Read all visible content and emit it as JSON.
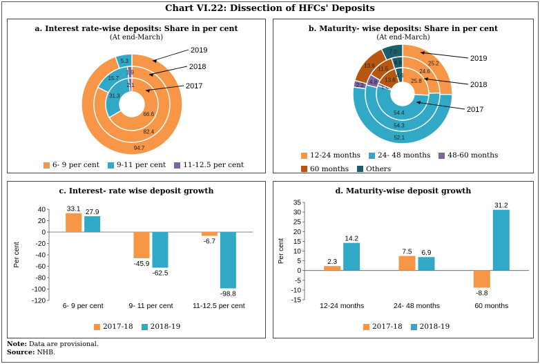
{
  "title": "Chart VI.22: Dissection of HFCs' Deposits",
  "note_label": "Note:",
  "note_text": "Data are provisional.",
  "source_label": "Source:",
  "source_text": "NHB.",
  "colors": {
    "orange": "#F79646",
    "blue": "#31A9C6",
    "purple": "#8064A2",
    "brown": "#B7560F",
    "teal": "#1B5E6E"
  },
  "chart_data": [
    {
      "id": "a",
      "type": "pie",
      "subtype": "multi-ring-donut",
      "title": "a. Interest rate-wise deposits: Share in per cent",
      "subtitle": "(At end-March)",
      "categories": [
        "6- 9 per cent",
        "9-11 per cent",
        "11-12.5 per cent"
      ],
      "rings": [
        {
          "name": "2019",
          "values": [
            94.7,
            5.3,
            0.0
          ],
          "labels": [
            "94.7",
            "5.3",
            ""
          ]
        },
        {
          "name": "2018",
          "values": [
            82.4,
            15.7,
            1.9
          ],
          "labels": [
            "82.4",
            "15.7",
            "1.9"
          ]
        },
        {
          "name": "2017",
          "values": [
            66.6,
            31.3,
            2.1
          ],
          "labels": [
            "66.6",
            "31.3",
            "2.1"
          ]
        }
      ],
      "legend": [
        "6- 9 per cent",
        "9-11 per cent",
        "11-12.5 per cent"
      ]
    },
    {
      "id": "b",
      "type": "pie",
      "subtype": "multi-ring-donut",
      "title": "b. Maturity- wise deposits: Share in per cent",
      "subtitle": "(At end-March)",
      "categories": [
        "12-24 months",
        "24- 48 months",
        "48-60 months",
        "60 months",
        "Others"
      ],
      "rings": [
        {
          "name": "2019",
          "values": [
            25.2,
            52.1,
            2.2,
            13.6,
            7.0
          ],
          "labels": [
            "25.2",
            "52.1",
            "2.2",
            "13.6",
            "7.0"
          ]
        },
        {
          "name": "2018",
          "values": [
            24.6,
            54.3,
            4.8,
            11.5,
            4.8
          ],
          "labels": [
            "24.6",
            "54.3",
            "4.8",
            "11.5",
            "4.8"
          ]
        },
        {
          "name": "2017",
          "values": [
            25.8,
            54.4,
            1.6,
            13.6,
            4.6
          ],
          "labels": [
            "25.8",
            "54.4",
            "1.6",
            "13.6",
            "4.6"
          ]
        }
      ],
      "legend": [
        "12-24 months",
        "24- 48 months",
        "48-60 months",
        "60 months",
        "Others"
      ]
    },
    {
      "id": "c",
      "type": "bar",
      "title": "c. Interest- rate wise deposit growth",
      "ylabel": "Per cent",
      "categories": [
        "6- 9 per cent",
        "9- 11 per cent",
        "11-12.5 per cent"
      ],
      "series": [
        {
          "name": "2017-18",
          "values": [
            33.1,
            -45.9,
            -6.7
          ]
        },
        {
          "name": "2018-19",
          "values": [
            27.9,
            -62.5,
            -98.8
          ]
        }
      ],
      "ylim": [
        -120,
        40
      ],
      "yticks": [
        40,
        20,
        0,
        -20,
        -40,
        -60,
        -80,
        -100,
        -120
      ]
    },
    {
      "id": "d",
      "type": "bar",
      "title": "d. Maturity-wise deposit growth",
      "ylabel": "Per cent",
      "categories": [
        "12-24 months",
        "24- 48 months",
        "60 months"
      ],
      "series": [
        {
          "name": "2017-18",
          "values": [
            2.3,
            7.5,
            -8.8
          ]
        },
        {
          "name": "2018-19",
          "values": [
            14.2,
            6.9,
            31.2
          ]
        }
      ],
      "ylim": [
        -15,
        35
      ],
      "yticks": [
        35,
        30,
        25,
        20,
        15,
        10,
        5,
        0,
        -5,
        -10,
        -15
      ]
    }
  ]
}
